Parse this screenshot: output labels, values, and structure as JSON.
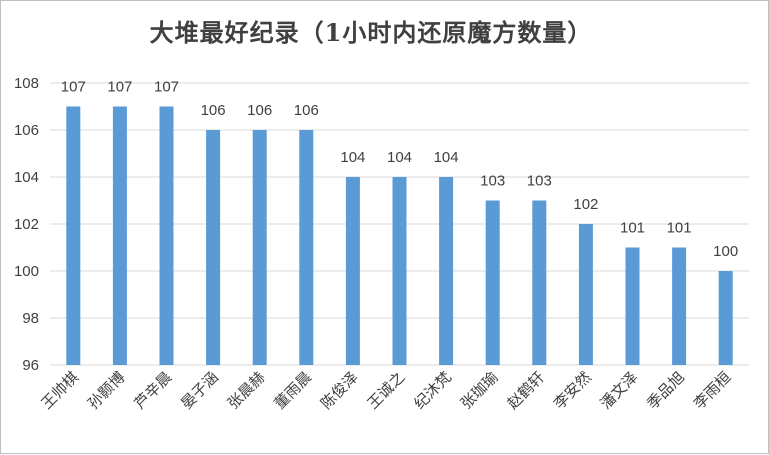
{
  "chart_data": {
    "type": "bar",
    "title": "大堆最好纪录（1小时内还原魔方数量）",
    "categories": [
      "王帅棋",
      "孙颢博",
      "芦辛晨",
      "晏子涵",
      "张晨赫",
      "董雨晨",
      "陈俊泽",
      "王诚之",
      "纪沐梵",
      "张珈瑜",
      "赵鹤轩",
      "李安然",
      "潘文泽",
      "季品旭",
      "李雨桓"
    ],
    "values": [
      107,
      107,
      107,
      106,
      106,
      106,
      104,
      104,
      104,
      103,
      103,
      102,
      101,
      101,
      100
    ],
    "ylim": [
      96,
      108
    ],
    "yticks": [
      96,
      98,
      100,
      102,
      104,
      106,
      108
    ],
    "grid": true,
    "data_labels": true,
    "bar_color": "#5b9bd5",
    "grid_color": "#d9d9d9"
  }
}
